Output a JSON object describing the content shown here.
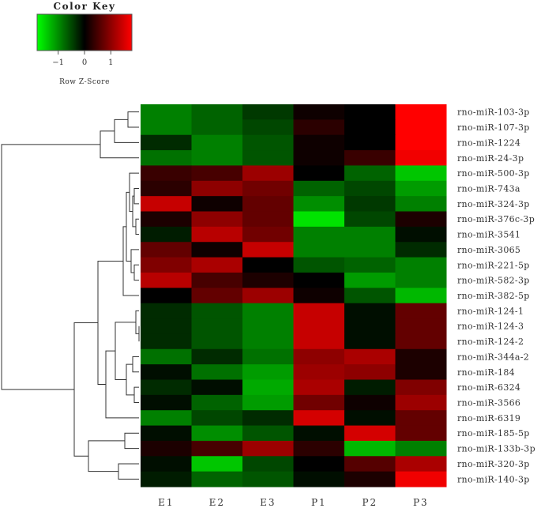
{
  "chart_data": {
    "type": "heatmap",
    "title": "",
    "color_key": {
      "title": "Color Key",
      "axis_label": "Row Z-Score",
      "ticks": [
        "−1",
        "0",
        "1"
      ],
      "tick_values": [
        -1,
        0,
        1
      ],
      "range": [
        -1.8,
        1.8
      ],
      "colors": {
        "low": "#00ff00",
        "mid": "#000000",
        "high": "#ff0000"
      }
    },
    "columns": [
      "E1",
      "E2",
      "E3",
      "P1",
      "P2",
      "P3"
    ],
    "rows": [
      "rno-miR-103-3p",
      "rno-miR-107-3p",
      "rno-miR-1224",
      "rno-miR-24-3p",
      "rno-miR-500-3p",
      "rno-miR-743a",
      "rno-miR-324-3p",
      "rno-miR-376c-3p",
      "rno-miR-3541",
      "rno-miR-3065",
      "rno-miR-221-5p",
      "rno-miR-582-3p",
      "rno-miR-382-5p",
      "rno-miR-124-1",
      "rno-miR-124-3",
      "rno-miR-124-2",
      "rno-miR-344a-2",
      "rno-miR-184",
      "rno-miR-6324",
      "rno-miR-3566",
      "rno-miR-6319",
      "rno-miR-185-5p",
      "rno-miR-133b-3p",
      "rno-miR-320-3p",
      "rno-miR-140-3p"
    ],
    "values": [
      [
        -0.9,
        -0.7,
        -0.4,
        0.1,
        0.0,
        1.8
      ],
      [
        -0.9,
        -0.7,
        -0.5,
        0.3,
        0.0,
        1.8
      ],
      [
        -0.3,
        -0.9,
        -0.6,
        0.1,
        0.0,
        1.8
      ],
      [
        -0.8,
        -0.9,
        -0.6,
        0.1,
        0.4,
        1.7
      ],
      [
        0.4,
        0.5,
        1.1,
        0.0,
        -0.7,
        -1.4
      ],
      [
        0.3,
        1.0,
        0.8,
        -0.7,
        -0.5,
        -1.1
      ],
      [
        1.4,
        0.1,
        0.7,
        -1.0,
        -0.4,
        -0.9
      ],
      [
        0.2,
        1.0,
        0.7,
        -1.6,
        -0.5,
        0.2
      ],
      [
        -0.2,
        1.3,
        0.8,
        -0.9,
        -0.9,
        -0.1
      ],
      [
        0.7,
        0.1,
        1.4,
        -0.9,
        -0.9,
        -0.3
      ],
      [
        0.9,
        1.2,
        0.0,
        -0.6,
        -0.7,
        -0.9
      ],
      [
        1.3,
        0.5,
        0.2,
        0.0,
        -1.1,
        -0.9
      ],
      [
        0.0,
        0.7,
        1.1,
        0.1,
        -0.6,
        -1.3
      ],
      [
        -0.3,
        -0.6,
        -0.9,
        1.4,
        -0.1,
        0.7
      ],
      [
        -0.3,
        -0.6,
        -0.9,
        1.4,
        -0.1,
        0.7
      ],
      [
        -0.3,
        -0.6,
        -0.9,
        1.4,
        -0.1,
        0.7
      ],
      [
        -0.8,
        -0.3,
        -0.8,
        1.0,
        1.2,
        0.2
      ],
      [
        -0.1,
        -0.8,
        -1.1,
        1.1,
        1.0,
        0.2
      ],
      [
        -0.3,
        -0.1,
        -1.2,
        1.2,
        -0.2,
        0.9
      ],
      [
        -0.1,
        -0.7,
        -1.1,
        0.8,
        0.1,
        1.1
      ],
      [
        -0.9,
        -0.5,
        -0.3,
        1.5,
        -0.1,
        0.7
      ],
      [
        -0.1,
        -1.0,
        -0.6,
        -0.1,
        1.5,
        0.7
      ],
      [
        0.2,
        0.5,
        1.1,
        0.3,
        -1.3,
        -0.9
      ],
      [
        -0.1,
        -1.4,
        -0.5,
        0.0,
        0.6,
        1.2
      ],
      [
        -0.2,
        -0.7,
        -0.6,
        -0.1,
        0.2,
        1.7
      ]
    ]
  }
}
